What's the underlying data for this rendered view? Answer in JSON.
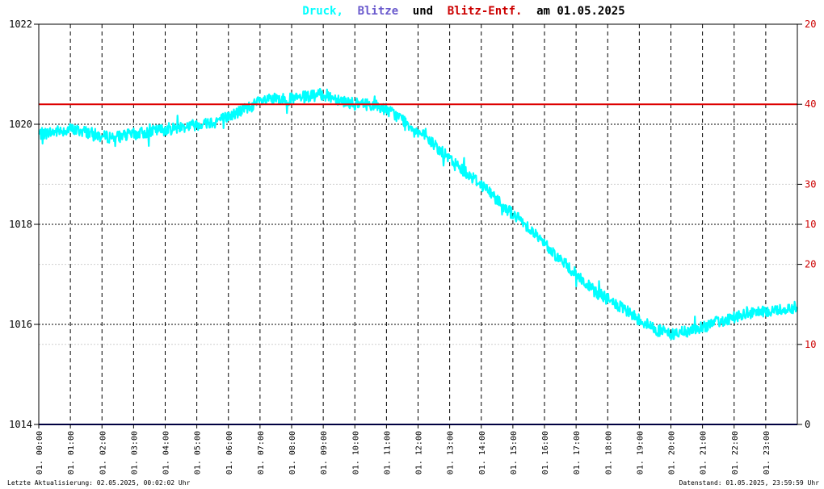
{
  "title": {
    "parts": [
      {
        "text": "Druck,",
        "color": "#00ffff"
      },
      {
        "text": "Blitze",
        "color": "#6a5acd"
      },
      {
        "text": "und",
        "color": "#000000"
      },
      {
        "text": "Blitz-Entf.",
        "color": "#cc0000"
      },
      {
        "text": "am 01.05.2025",
        "color": "#000000"
      }
    ]
  },
  "footer": {
    "left": "Letzte Aktualisierung: 02.05.2025, 00:02:02 Uhr",
    "right": "Datenstand: 01.05.2025, 23:59:59 Uhr"
  },
  "colors": {
    "pressure": "#00ffff",
    "strikes": "#000080",
    "distance_line": "#dd0000",
    "right_ticks": "#cc0000",
    "right_zero": "#000000",
    "grid": "#000000",
    "grid_light": "#cfcfcf"
  },
  "chart_data": {
    "type": "line",
    "title": "Druck, Blitze und Blitz-Entf. am 01.05.2025",
    "x_tick_labels": [
      "01. 00:00",
      "01. 01:00",
      "01. 02:00",
      "01. 03:00",
      "01. 04:00",
      "01. 05:00",
      "01. 06:00",
      "01. 07:00",
      "01. 08:00",
      "01. 09:00",
      "01. 10:00",
      "01. 11:00",
      "01. 12:00",
      "01. 13:00",
      "01. 14:00",
      "01. 15:00",
      "01. 16:00",
      "01. 17:00",
      "01. 18:00",
      "01. 19:00",
      "01. 20:00",
      "01. 21:00",
      "01. 22:00",
      "01. 23:00"
    ],
    "y_left": {
      "ticks": [
        "1022",
        "1020",
        "1018",
        "1016",
        "1014"
      ],
      "range": [
        1014,
        1022
      ]
    },
    "y_right": {
      "ticks": [
        {
          "label": "20",
          "level": 8
        },
        {
          "label": "40",
          "level": 6.4
        },
        {
          "label": "30",
          "level": 4.8
        },
        {
          "label": "10",
          "level": 4
        },
        {
          "label": "20",
          "level": 3.2
        },
        {
          "label": "10",
          "level": 1.6
        },
        {
          "label": "0",
          "level": 0
        }
      ]
    },
    "grid": true,
    "series": [
      {
        "name": "Druck",
        "x_hours": [
          0,
          0.5,
          1,
          1.5,
          2,
          2.5,
          3,
          3.5,
          4,
          4.5,
          5,
          5.5,
          6,
          6.5,
          7,
          7.5,
          8,
          8.5,
          9,
          9.5,
          10,
          10.5,
          11,
          11.5,
          12,
          12.5,
          13,
          13.5,
          14,
          14.5,
          15,
          15.5,
          16,
          16.5,
          17,
          17.5,
          18,
          18.5,
          19,
          19.5,
          20,
          20.5,
          21,
          21.5,
          22,
          22.5,
          23,
          23.5,
          24
        ],
        "values": [
          1019.8,
          1019.85,
          1019.9,
          1019.85,
          1019.75,
          1019.75,
          1019.8,
          1019.85,
          1019.9,
          1019.95,
          1020.0,
          1020.05,
          1020.15,
          1020.3,
          1020.45,
          1020.5,
          1020.5,
          1020.55,
          1020.6,
          1020.5,
          1020.4,
          1020.4,
          1020.3,
          1020.1,
          1019.85,
          1019.6,
          1019.3,
          1019.05,
          1018.8,
          1018.5,
          1018.2,
          1017.95,
          1017.6,
          1017.3,
          1017.0,
          1016.7,
          1016.5,
          1016.3,
          1016.1,
          1015.9,
          1015.8,
          1015.85,
          1015.95,
          1016.05,
          1016.15,
          1016.2,
          1016.25,
          1016.3,
          1016.35
        ]
      },
      {
        "name": "Blitze",
        "x_hours": [
          0,
          24
        ],
        "values": [
          0,
          0
        ]
      },
      {
        "name": "Blitz-Entf.",
        "x_hours": [
          0,
          24
        ],
        "values": [
          6.4,
          6.4
        ]
      }
    ]
  }
}
